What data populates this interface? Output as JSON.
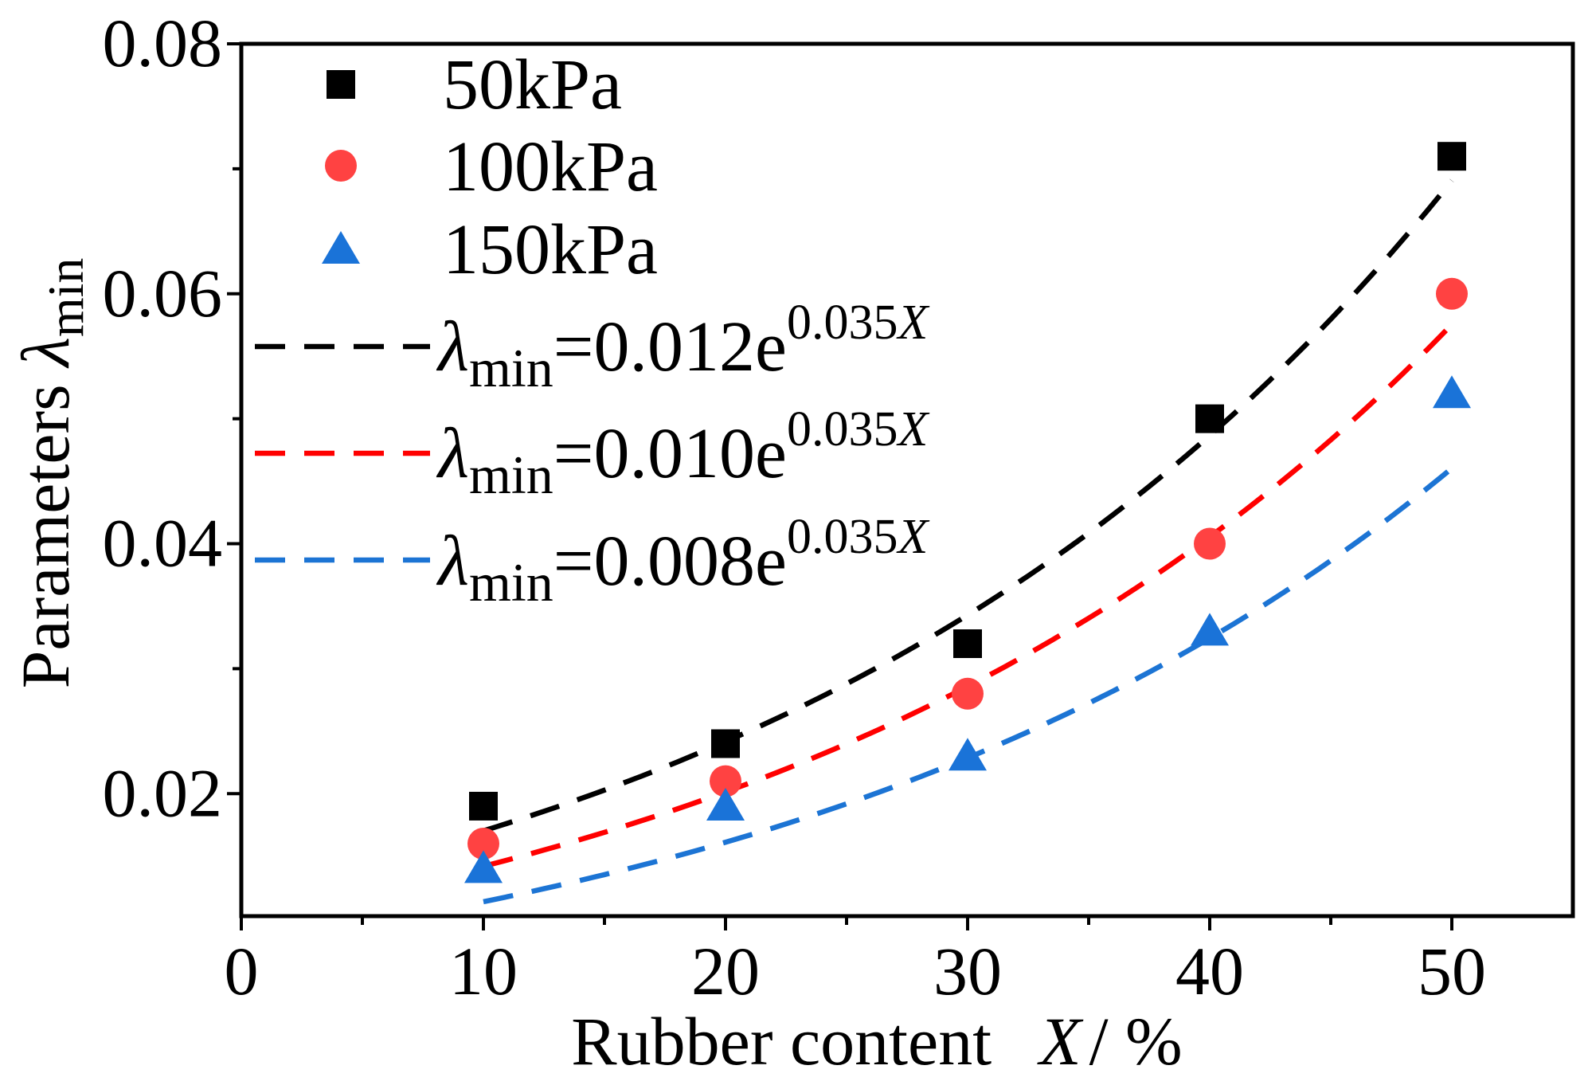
{
  "chart_data": {
    "type": "scatter",
    "title": "",
    "xlabel": "Rubber content",
    "xlabel_var": "X",
    "xlabel_unit": "/ %",
    "ylabel": "Parameters",
    "ylabel_symbol": "λ",
    "ylabel_sub": "min",
    "xlim": [
      0,
      55
    ],
    "ylim": [
      0.0102,
      0.08
    ],
    "xticks": [
      0,
      10,
      20,
      30,
      40,
      50
    ],
    "xtick_labels": [
      "0",
      "10",
      "20",
      "30",
      "40",
      "50"
    ],
    "xminor_ticks": [
      5,
      15,
      25,
      35,
      45
    ],
    "yticks": [
      0.02,
      0.04,
      0.06,
      0.08
    ],
    "ytick_labels": [
      "0.02",
      "0.04",
      "0.06",
      "0.08"
    ],
    "yminor_ticks": [
      0.03,
      0.05,
      0.07
    ],
    "grid": false,
    "legend_position": "top-left",
    "series": [
      {
        "name": "50kPa",
        "marker": "square",
        "color": "#000000",
        "x": [
          10,
          20,
          30,
          40,
          50
        ],
        "y": [
          0.019,
          0.024,
          0.032,
          0.05,
          0.071
        ]
      },
      {
        "name": "100kPa",
        "marker": "circle",
        "color": "#ff4242",
        "x": [
          10,
          20,
          30,
          40,
          50
        ],
        "y": [
          0.016,
          0.021,
          0.028,
          0.04,
          0.06
        ]
      },
      {
        "name": "150kPa",
        "marker": "triangle",
        "color": "#1a73d8",
        "x": [
          10,
          20,
          30,
          40,
          50
        ],
        "y": [
          0.014,
          0.019,
          0.023,
          0.033,
          0.052
        ]
      }
    ],
    "fits": [
      {
        "a": 0.012,
        "b": 0.035,
        "x_range": [
          10,
          50
        ],
        "color": "#000000",
        "symbol": "λ",
        "sub": "min",
        "main": "=0.012e",
        "exponent": "0.035",
        "exponent_var": "X"
      },
      {
        "a": 0.01,
        "b": 0.035,
        "x_range": [
          10,
          50
        ],
        "color": "#ff0000",
        "symbol": "λ",
        "sub": "min",
        "main": "=0.010e",
        "exponent": "0.035",
        "exponent_var": "X"
      },
      {
        "a": 0.008,
        "b": 0.035,
        "x_range": [
          10,
          50
        ],
        "color": "#1c74d4",
        "symbol": "λ",
        "sub": "min",
        "main": "=0.008e",
        "exponent": "0.035",
        "exponent_var": "X"
      }
    ]
  }
}
